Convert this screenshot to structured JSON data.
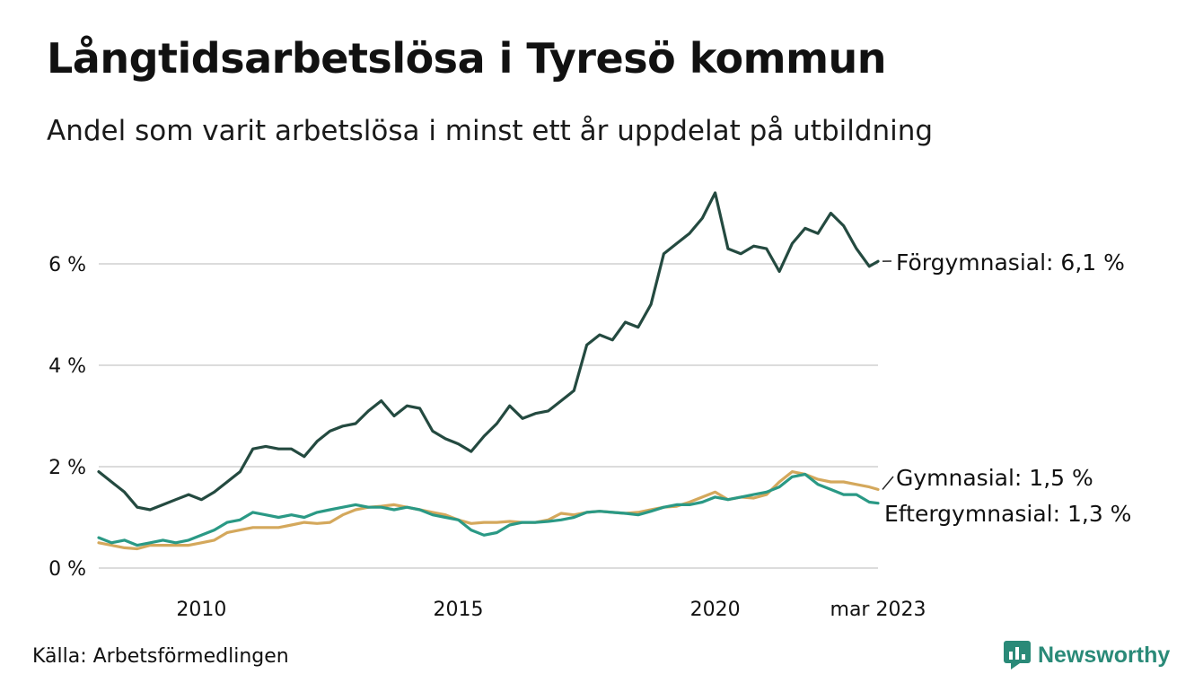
{
  "header": {
    "title": "Långtidsarbetslösa i Tyresö kommun",
    "subtitle": "Andel som varit arbetslösa i minst ett år uppdelat på utbildning"
  },
  "footer": {
    "source": "Källa: Arbetsförmedlingen",
    "brand": "Newsworthy",
    "brand_color": "#2a8a78"
  },
  "chart_data": {
    "type": "line",
    "title": "Långtidsarbetslösa i Tyresö kommun",
    "subtitle": "Andel som varit arbetslösa i minst ett år uppdelat på utbildning",
    "x_range": [
      2008.0,
      2023.17
    ],
    "ylim": [
      0,
      7.5
    ],
    "y_ticks": [
      {
        "value": 0,
        "label": "0 %"
      },
      {
        "value": 2,
        "label": "2 %"
      },
      {
        "value": 4,
        "label": "4 %"
      },
      {
        "value": 6,
        "label": "6 %"
      }
    ],
    "x_ticks": [
      {
        "value": 2010,
        "label": "2010"
      },
      {
        "value": 2015,
        "label": "2015"
      },
      {
        "value": 2020,
        "label": "2020"
      },
      {
        "value": 2023.17,
        "label": "mar 2023"
      }
    ],
    "grid": true,
    "series": [
      {
        "name": "Förgymnasial",
        "end_label": "Förgymnasial: 6,1 %",
        "color": "#244a40",
        "points": [
          [
            2008.0,
            1.9
          ],
          [
            2008.25,
            1.7
          ],
          [
            2008.5,
            1.5
          ],
          [
            2008.75,
            1.2
          ],
          [
            2009.0,
            1.15
          ],
          [
            2009.25,
            1.25
          ],
          [
            2009.5,
            1.35
          ],
          [
            2009.75,
            1.45
          ],
          [
            2010.0,
            1.35
          ],
          [
            2010.25,
            1.5
          ],
          [
            2010.5,
            1.7
          ],
          [
            2010.75,
            1.9
          ],
          [
            2011.0,
            2.35
          ],
          [
            2011.25,
            2.4
          ],
          [
            2011.5,
            2.35
          ],
          [
            2011.75,
            2.35
          ],
          [
            2012.0,
            2.2
          ],
          [
            2012.25,
            2.5
          ],
          [
            2012.5,
            2.7
          ],
          [
            2012.75,
            2.8
          ],
          [
            2013.0,
            2.85
          ],
          [
            2013.25,
            3.1
          ],
          [
            2013.5,
            3.3
          ],
          [
            2013.75,
            3.0
          ],
          [
            2014.0,
            3.2
          ],
          [
            2014.25,
            3.15
          ],
          [
            2014.5,
            2.7
          ],
          [
            2014.75,
            2.55
          ],
          [
            2015.0,
            2.45
          ],
          [
            2015.25,
            2.3
          ],
          [
            2015.5,
            2.6
          ],
          [
            2015.75,
            2.85
          ],
          [
            2016.0,
            3.2
          ],
          [
            2016.25,
            2.95
          ],
          [
            2016.5,
            3.05
          ],
          [
            2016.75,
            3.1
          ],
          [
            2017.0,
            3.3
          ],
          [
            2017.25,
            3.5
          ],
          [
            2017.5,
            4.4
          ],
          [
            2017.75,
            4.6
          ],
          [
            2018.0,
            4.5
          ],
          [
            2018.25,
            4.85
          ],
          [
            2018.5,
            4.75
          ],
          [
            2018.75,
            5.2
          ],
          [
            2019.0,
            6.2
          ],
          [
            2019.25,
            6.4
          ],
          [
            2019.5,
            6.6
          ],
          [
            2019.75,
            6.9
          ],
          [
            2020.0,
            7.4
          ],
          [
            2020.25,
            6.3
          ],
          [
            2020.5,
            6.2
          ],
          [
            2020.75,
            6.35
          ],
          [
            2021.0,
            6.3
          ],
          [
            2021.25,
            5.85
          ],
          [
            2021.5,
            6.4
          ],
          [
            2021.75,
            6.7
          ],
          [
            2022.0,
            6.6
          ],
          [
            2022.25,
            7.0
          ],
          [
            2022.5,
            6.75
          ],
          [
            2022.75,
            6.3
          ],
          [
            2023.0,
            5.95
          ],
          [
            2023.17,
            6.05
          ]
        ]
      },
      {
        "name": "Gymnasial",
        "end_label": "Gymnasial: 1,5 %",
        "color": "#d4a85c",
        "points": [
          [
            2008.0,
            0.5
          ],
          [
            2008.25,
            0.45
          ],
          [
            2008.5,
            0.4
          ],
          [
            2008.75,
            0.38
          ],
          [
            2009.0,
            0.45
          ],
          [
            2009.25,
            0.45
          ],
          [
            2009.5,
            0.45
          ],
          [
            2009.75,
            0.45
          ],
          [
            2010.0,
            0.5
          ],
          [
            2010.25,
            0.55
          ],
          [
            2010.5,
            0.7
          ],
          [
            2010.75,
            0.75
          ],
          [
            2011.0,
            0.8
          ],
          [
            2011.25,
            0.8
          ],
          [
            2011.5,
            0.8
          ],
          [
            2011.75,
            0.85
          ],
          [
            2012.0,
            0.9
          ],
          [
            2012.25,
            0.88
          ],
          [
            2012.5,
            0.9
          ],
          [
            2012.75,
            1.05
          ],
          [
            2013.0,
            1.15
          ],
          [
            2013.25,
            1.2
          ],
          [
            2013.5,
            1.22
          ],
          [
            2013.75,
            1.25
          ],
          [
            2014.0,
            1.2
          ],
          [
            2014.25,
            1.15
          ],
          [
            2014.5,
            1.1
          ],
          [
            2014.75,
            1.05
          ],
          [
            2015.0,
            0.95
          ],
          [
            2015.25,
            0.88
          ],
          [
            2015.5,
            0.9
          ],
          [
            2015.75,
            0.9
          ],
          [
            2016.0,
            0.92
          ],
          [
            2016.25,
            0.9
          ],
          [
            2016.5,
            0.9
          ],
          [
            2016.75,
            0.95
          ],
          [
            2017.0,
            1.08
          ],
          [
            2017.25,
            1.05
          ],
          [
            2017.5,
            1.1
          ],
          [
            2017.75,
            1.12
          ],
          [
            2018.0,
            1.1
          ],
          [
            2018.25,
            1.08
          ],
          [
            2018.5,
            1.1
          ],
          [
            2018.75,
            1.15
          ],
          [
            2019.0,
            1.2
          ],
          [
            2019.25,
            1.22
          ],
          [
            2019.5,
            1.3
          ],
          [
            2019.75,
            1.4
          ],
          [
            2020.0,
            1.5
          ],
          [
            2020.25,
            1.35
          ],
          [
            2020.5,
            1.4
          ],
          [
            2020.75,
            1.38
          ],
          [
            2021.0,
            1.45
          ],
          [
            2021.25,
            1.7
          ],
          [
            2021.5,
            1.9
          ],
          [
            2021.75,
            1.85
          ],
          [
            2022.0,
            1.75
          ],
          [
            2022.25,
            1.7
          ],
          [
            2022.5,
            1.7
          ],
          [
            2022.75,
            1.65
          ],
          [
            2023.0,
            1.6
          ],
          [
            2023.17,
            1.55
          ]
        ]
      },
      {
        "name": "Eftergymnasial",
        "end_label": "Eftergymnasial: 1,3 %",
        "color": "#2a9985",
        "points": [
          [
            2008.0,
            0.6
          ],
          [
            2008.25,
            0.5
          ],
          [
            2008.5,
            0.55
          ],
          [
            2008.75,
            0.45
          ],
          [
            2009.0,
            0.5
          ],
          [
            2009.25,
            0.55
          ],
          [
            2009.5,
            0.5
          ],
          [
            2009.75,
            0.55
          ],
          [
            2010.0,
            0.65
          ],
          [
            2010.25,
            0.75
          ],
          [
            2010.5,
            0.9
          ],
          [
            2010.75,
            0.95
          ],
          [
            2011.0,
            1.1
          ],
          [
            2011.25,
            1.05
          ],
          [
            2011.5,
            1.0
          ],
          [
            2011.75,
            1.05
          ],
          [
            2012.0,
            1.0
          ],
          [
            2012.25,
            1.1
          ],
          [
            2012.5,
            1.15
          ],
          [
            2012.75,
            1.2
          ],
          [
            2013.0,
            1.25
          ],
          [
            2013.25,
            1.2
          ],
          [
            2013.5,
            1.2
          ],
          [
            2013.75,
            1.15
          ],
          [
            2014.0,
            1.2
          ],
          [
            2014.25,
            1.15
          ],
          [
            2014.5,
            1.05
          ],
          [
            2014.75,
            1.0
          ],
          [
            2015.0,
            0.95
          ],
          [
            2015.25,
            0.75
          ],
          [
            2015.5,
            0.65
          ],
          [
            2015.75,
            0.7
          ],
          [
            2016.0,
            0.85
          ],
          [
            2016.25,
            0.9
          ],
          [
            2016.5,
            0.9
          ],
          [
            2016.75,
            0.92
          ],
          [
            2017.0,
            0.95
          ],
          [
            2017.25,
            1.0
          ],
          [
            2017.5,
            1.1
          ],
          [
            2017.75,
            1.12
          ],
          [
            2018.0,
            1.1
          ],
          [
            2018.25,
            1.08
          ],
          [
            2018.5,
            1.05
          ],
          [
            2018.75,
            1.12
          ],
          [
            2019.0,
            1.2
          ],
          [
            2019.25,
            1.25
          ],
          [
            2019.5,
            1.25
          ],
          [
            2019.75,
            1.3
          ],
          [
            2020.0,
            1.4
          ],
          [
            2020.25,
            1.35
          ],
          [
            2020.5,
            1.4
          ],
          [
            2020.75,
            1.45
          ],
          [
            2021.0,
            1.5
          ],
          [
            2021.25,
            1.6
          ],
          [
            2021.5,
            1.8
          ],
          [
            2021.75,
            1.85
          ],
          [
            2022.0,
            1.65
          ],
          [
            2022.25,
            1.55
          ],
          [
            2022.5,
            1.45
          ],
          [
            2022.75,
            1.45
          ],
          [
            2023.0,
            1.3
          ],
          [
            2023.17,
            1.28
          ]
        ]
      }
    ]
  }
}
